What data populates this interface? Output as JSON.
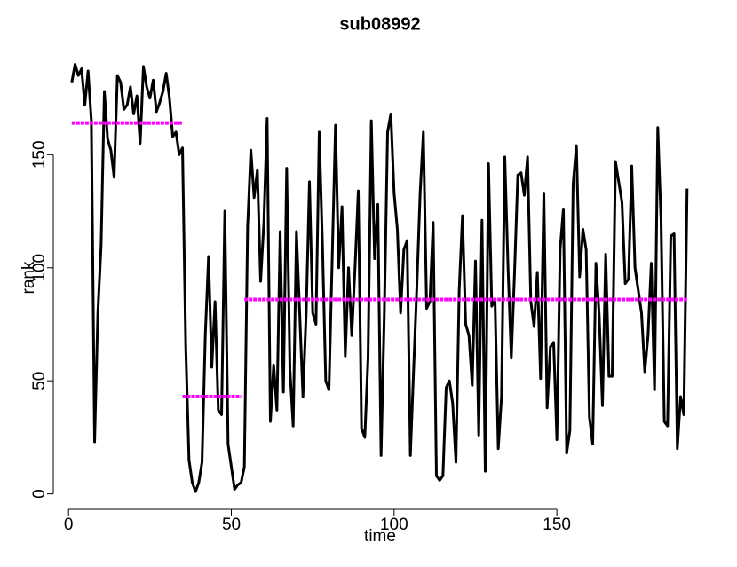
{
  "chart_data": {
    "type": "line",
    "title": "sub08992",
    "x_label": "time",
    "y_label": "rank",
    "xlim": [
      -6.6,
      196.6
    ],
    "ylim": [
      -7.6,
      197.6
    ],
    "xticks": [
      0,
      50,
      100,
      150
    ],
    "yticks": [
      0,
      50,
      100,
      150
    ],
    "x": [
      1,
      2,
      3,
      4,
      5,
      6,
      7,
      8,
      9,
      10,
      11,
      12,
      13,
      14,
      15,
      16,
      17,
      18,
      19,
      20,
      21,
      22,
      23,
      24,
      25,
      26,
      27,
      28,
      29,
      30,
      31,
      32,
      33,
      34,
      35,
      36,
      37,
      38,
      39,
      40,
      41,
      42,
      43,
      44,
      45,
      46,
      47,
      48,
      49,
      50,
      51,
      52,
      53,
      54,
      55,
      56,
      57,
      58,
      59,
      60,
      61,
      62,
      63,
      64,
      65,
      66,
      67,
      68,
      69,
      70,
      71,
      72,
      73,
      74,
      75,
      76,
      77,
      78,
      79,
      80,
      81,
      82,
      83,
      84,
      85,
      86,
      87,
      88,
      89,
      90,
      91,
      92,
      93,
      94,
      95,
      96,
      97,
      98,
      99,
      100,
      101,
      102,
      103,
      104,
      105,
      106,
      107,
      108,
      109,
      110,
      111,
      112,
      113,
      114,
      115,
      116,
      117,
      118,
      119,
      120,
      121,
      122,
      123,
      124,
      125,
      126,
      127,
      128,
      129,
      130,
      131,
      132,
      133,
      134,
      135,
      136,
      137,
      138,
      139,
      140,
      141,
      142,
      143,
      144,
      145,
      146,
      147,
      148,
      149,
      150,
      151,
      152,
      153,
      154,
      155,
      156,
      157,
      158,
      159,
      160,
      161,
      162,
      163,
      164,
      165,
      166,
      167,
      168,
      169,
      170,
      171,
      172,
      173,
      174,
      175,
      176,
      177,
      178,
      179,
      180,
      181,
      182,
      183,
      184,
      185,
      186,
      187,
      188,
      189,
      190
    ],
    "series": [
      {
        "color": "#000000",
        "values": [
          182,
          190,
          185,
          188,
          172,
          187,
          165,
          23,
          80,
          110,
          178,
          157,
          152,
          140,
          185,
          182,
          170,
          172,
          180,
          168,
          176,
          155,
          189,
          180,
          175,
          183,
          169,
          173,
          178,
          186,
          175,
          158,
          160,
          150,
          153,
          65,
          15,
          5,
          1,
          5,
          14,
          70,
          105,
          56,
          85,
          37,
          35,
          125,
          22,
          12,
          2,
          4,
          5,
          12,
          118,
          152,
          131,
          143,
          94,
          120,
          166,
          32,
          57,
          37,
          116,
          45,
          144,
          55,
          30,
          116,
          80,
          43,
          80,
          138,
          80,
          75,
          160,
          110,
          50,
          46,
          105,
          163,
          100,
          127,
          61,
          100,
          70,
          100,
          134,
          29,
          25,
          60,
          165,
          104,
          128,
          17,
          80,
          160,
          168,
          133,
          117,
          80,
          108,
          112,
          17,
          55,
          92,
          133,
          160,
          82,
          85,
          120,
          8,
          6,
          8,
          47,
          50,
          40,
          14,
          90,
          123,
          75,
          70,
          48,
          103,
          26,
          121,
          10,
          146,
          83,
          86,
          20,
          43,
          149,
          100,
          60,
          98,
          141,
          142,
          132,
          149,
          85,
          74,
          98,
          51,
          133,
          38,
          65,
          67,
          24,
          108,
          126,
          18,
          28,
          137,
          154,
          96,
          117,
          108,
          34,
          22,
          102,
          79,
          39,
          106,
          52,
          52,
          147,
          138,
          129,
          93,
          95,
          145,
          100,
          90,
          80,
          54,
          70,
          102,
          46,
          162,
          121,
          32,
          30,
          114,
          115,
          20,
          43,
          35,
          135
        ]
      }
    ],
    "segments": {
      "color": "#ff00ff",
      "items": [
        {
          "x": [
            1,
            35
          ],
          "value": 164
        },
        {
          "x": [
            35,
            53
          ],
          "value": 43
        },
        {
          "x": [
            54,
            190
          ],
          "value": 86
        }
      ]
    }
  }
}
